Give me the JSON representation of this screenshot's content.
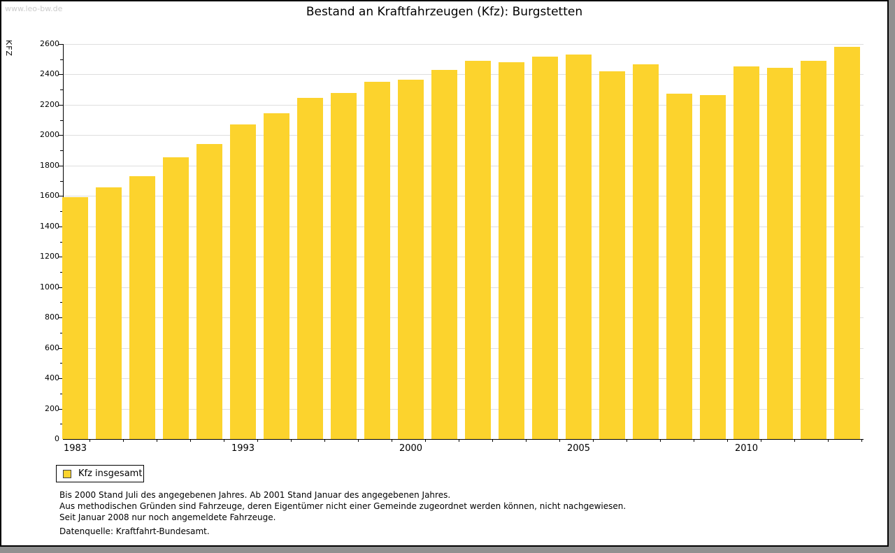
{
  "watermark": "www.leo-bw.de",
  "title": "Bestand an Kraftfahrzeugen (Kfz): Burgstetten",
  "legend": {
    "label": "Kfz insgesamt"
  },
  "footnotes": [
    "Bis 2000 Stand Juli des angegebenen Jahres. Ab 2001 Stand Januar des angegebenen Jahres.",
    "Aus methodischen Gründen sind Fahrzeuge, deren Eigentümer nicht einer Gemeinde zugeordnet werden können, nicht nachgewiesen.",
    "Seit Januar 2008 nur noch angemeldete Fahrzeuge."
  ],
  "source_line": "Datenquelle: Kraftfahrt-Bundesamt.",
  "colors": {
    "bar": "#FCD32D",
    "grid": "#DEDEDE",
    "axis": "#000000",
    "watermark": "#CBCBCB"
  },
  "chart_data": {
    "type": "bar",
    "title": "Bestand an Kraftfahrzeugen (Kfz): Burgstetten",
    "xlabel": "",
    "ylabel": "KFZ",
    "ylim": [
      0,
      2600
    ],
    "y_major_step": 200,
    "y_minor_step": 100,
    "grid": true,
    "legend_position": "bottom-left",
    "series_name": "Kfz insgesamt",
    "categories": [
      "1983",
      "1985",
      "1987",
      "1989",
      "1991",
      "1993",
      "1995",
      "1997",
      "1998",
      "1999",
      "2000",
      "2001",
      "2002",
      "2003",
      "2004",
      "2005",
      "2006",
      "2007",
      "2008",
      "2009",
      "2010",
      "2011",
      "2012",
      "2013"
    ],
    "values": [
      1590,
      1655,
      1730,
      1855,
      1940,
      2070,
      2145,
      2245,
      2280,
      2350,
      2365,
      2430,
      2490,
      2480,
      2515,
      2530,
      2420,
      2465,
      2275,
      2265,
      2455,
      2445,
      2490,
      2580
    ],
    "x_tick_labels_shown": [
      "1983",
      "1993",
      "2000",
      "2005",
      "2010"
    ]
  }
}
